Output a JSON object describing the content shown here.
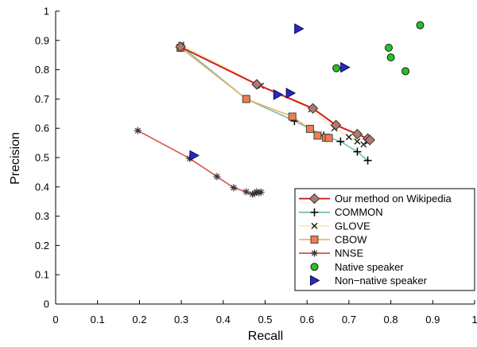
{
  "chart_data": {
    "type": "scatter",
    "xlabel": "Recall",
    "ylabel": "Precision",
    "xlim": [
      0,
      1
    ],
    "ylim": [
      0,
      1
    ],
    "xticks": [
      "0",
      "0.1",
      "0.2",
      "0.3",
      "0.4",
      "0.5",
      "0.6",
      "0.7",
      "0.8",
      "0.9",
      "1"
    ],
    "yticks": [
      "0",
      "0.1",
      "0.2",
      "0.3",
      "0.4",
      "0.5",
      "0.6",
      "0.7",
      "0.8",
      "0.9",
      "1"
    ],
    "grid": false,
    "legend_position": "bottom-right",
    "series": [
      {
        "name": "COMMON",
        "marker": "plus",
        "line": true,
        "color": "#6fbfa8",
        "x": [
          0.3,
          0.455,
          0.57,
          0.64,
          0.68,
          0.72,
          0.745
        ],
        "y": [
          0.88,
          0.7,
          0.625,
          0.575,
          0.555,
          0.52,
          0.49
        ]
      },
      {
        "name": "GLOVE",
        "marker": "x",
        "line": true,
        "color": "#f2eeb4",
        "x": [
          0.3,
          0.49,
          0.61,
          0.665,
          0.7,
          0.72,
          0.735,
          0.745
        ],
        "y": [
          0.885,
          0.745,
          0.665,
          0.6,
          0.57,
          0.555,
          0.545,
          0.555
        ]
      },
      {
        "name": "CBOW",
        "marker": "square",
        "line": true,
        "color": "#f2b26a",
        "fill": "#f07c4f",
        "x": [
          0.298,
          0.455,
          0.565,
          0.607,
          0.625,
          0.645,
          0.652
        ],
        "y": [
          0.875,
          0.7,
          0.64,
          0.598,
          0.575,
          0.568,
          0.567
        ]
      },
      {
        "name": "NNSE",
        "marker": "asterisk",
        "line": true,
        "color": "#d9534f",
        "x": [
          0.196,
          0.32,
          0.385,
          0.425,
          0.455,
          0.47,
          0.475,
          0.48,
          0.485,
          0.49
        ],
        "y": [
          0.592,
          0.497,
          0.435,
          0.397,
          0.383,
          0.375,
          0.378,
          0.383,
          0.38,
          0.382
        ]
      },
      {
        "name": "Our method on Wikipedia",
        "marker": "diamond",
        "line": true,
        "color": "#d7191c",
        "fill": "#b07a6c",
        "x": [
          0.298,
          0.48,
          0.614,
          0.669,
          0.72,
          0.745,
          0.75
        ],
        "y": [
          0.878,
          0.75,
          0.668,
          0.611,
          0.58,
          0.565,
          0.56
        ]
      },
      {
        "name": "Native speaker",
        "marker": "circle",
        "line": false,
        "color": "#1a1a1a",
        "fill": "#22c422",
        "x": [
          0.67,
          0.795,
          0.8,
          0.835,
          0.87
        ],
        "y": [
          0.805,
          0.875,
          0.842,
          0.795,
          0.952
        ]
      },
      {
        "name": "Non−native speaker",
        "marker": "triangle-right",
        "line": false,
        "color": "#0a0a60",
        "fill": "#2a2ab8",
        "x": [
          0.33,
          0.53,
          0.56,
          0.58,
          0.69
        ],
        "y": [
          0.507,
          0.715,
          0.72,
          0.94,
          0.808
        ]
      }
    ]
  },
  "legend_order": [
    "Our method on Wikipedia",
    "COMMON",
    "GLOVE",
    "CBOW",
    "NNSE",
    "Native speaker",
    "Non−native speaker"
  ]
}
